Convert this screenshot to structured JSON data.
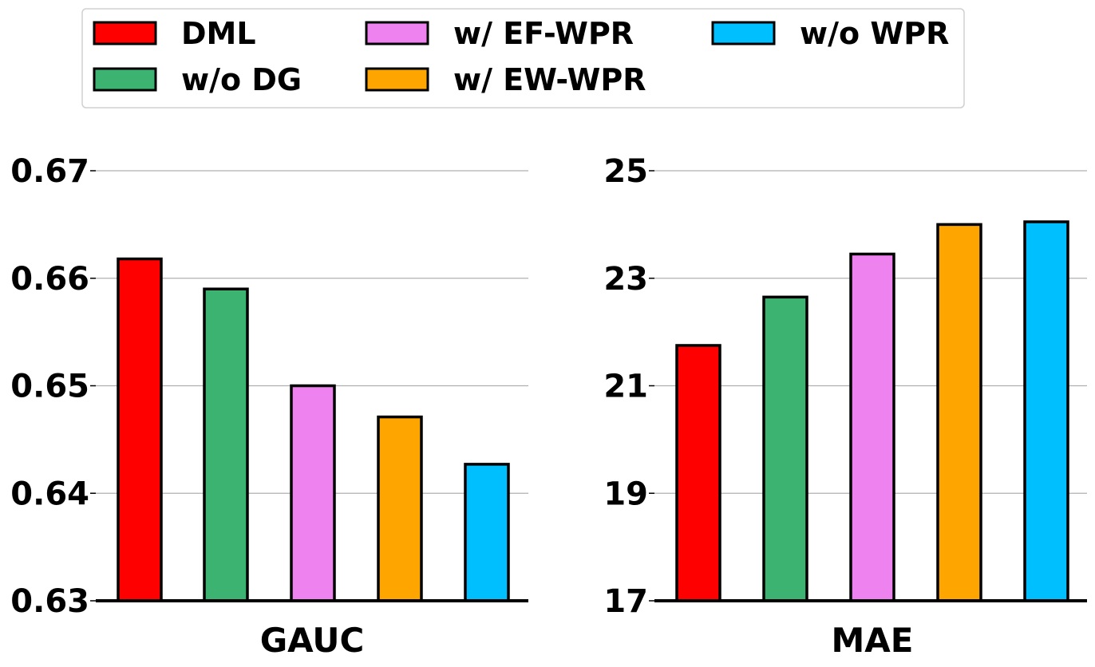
{
  "legend": {
    "entries": [
      "DML",
      "w/o DG",
      "w/ EF-WPR",
      "w/ EW-WPR",
      "w/o WPR"
    ],
    "colors": [
      "#ff0000",
      "#3cb371",
      "#ee82ee",
      "#ffa500",
      "#00bfff"
    ]
  },
  "chart_data": [
    {
      "type": "bar",
      "title": "",
      "xlabel": "GAUC",
      "ylabel": "",
      "categories": [
        "DML",
        "w/o DG",
        "w/ EF-WPR",
        "w/ EW-WPR",
        "w/o WPR"
      ],
      "values": [
        0.6618,
        0.659,
        0.65,
        0.6471,
        0.6427
      ],
      "colors": [
        "#ff0000",
        "#3cb371",
        "#ee82ee",
        "#ffa500",
        "#00bfff"
      ],
      "ylim": [
        0.63,
        0.67
      ],
      "yticks": [
        0.63,
        0.64,
        0.65,
        0.66,
        0.67
      ],
      "ytick_labels": [
        "0.63",
        "0.64",
        "0.65",
        "0.66",
        "0.67"
      ],
      "grid": true
    },
    {
      "type": "bar",
      "title": "",
      "xlabel": "MAE",
      "ylabel": "",
      "categories": [
        "DML",
        "w/o DG",
        "w/ EF-WPR",
        "w/ EW-WPR",
        "w/o WPR"
      ],
      "values": [
        21.75,
        22.65,
        23.45,
        24.0,
        24.05
      ],
      "colors": [
        "#ff0000",
        "#3cb371",
        "#ee82ee",
        "#ffa500",
        "#00bfff"
      ],
      "ylim": [
        17,
        25
      ],
      "yticks": [
        17,
        19,
        21,
        23,
        25
      ],
      "ytick_labels": [
        "17",
        "19",
        "21",
        "23",
        "25"
      ],
      "grid": true
    }
  ]
}
